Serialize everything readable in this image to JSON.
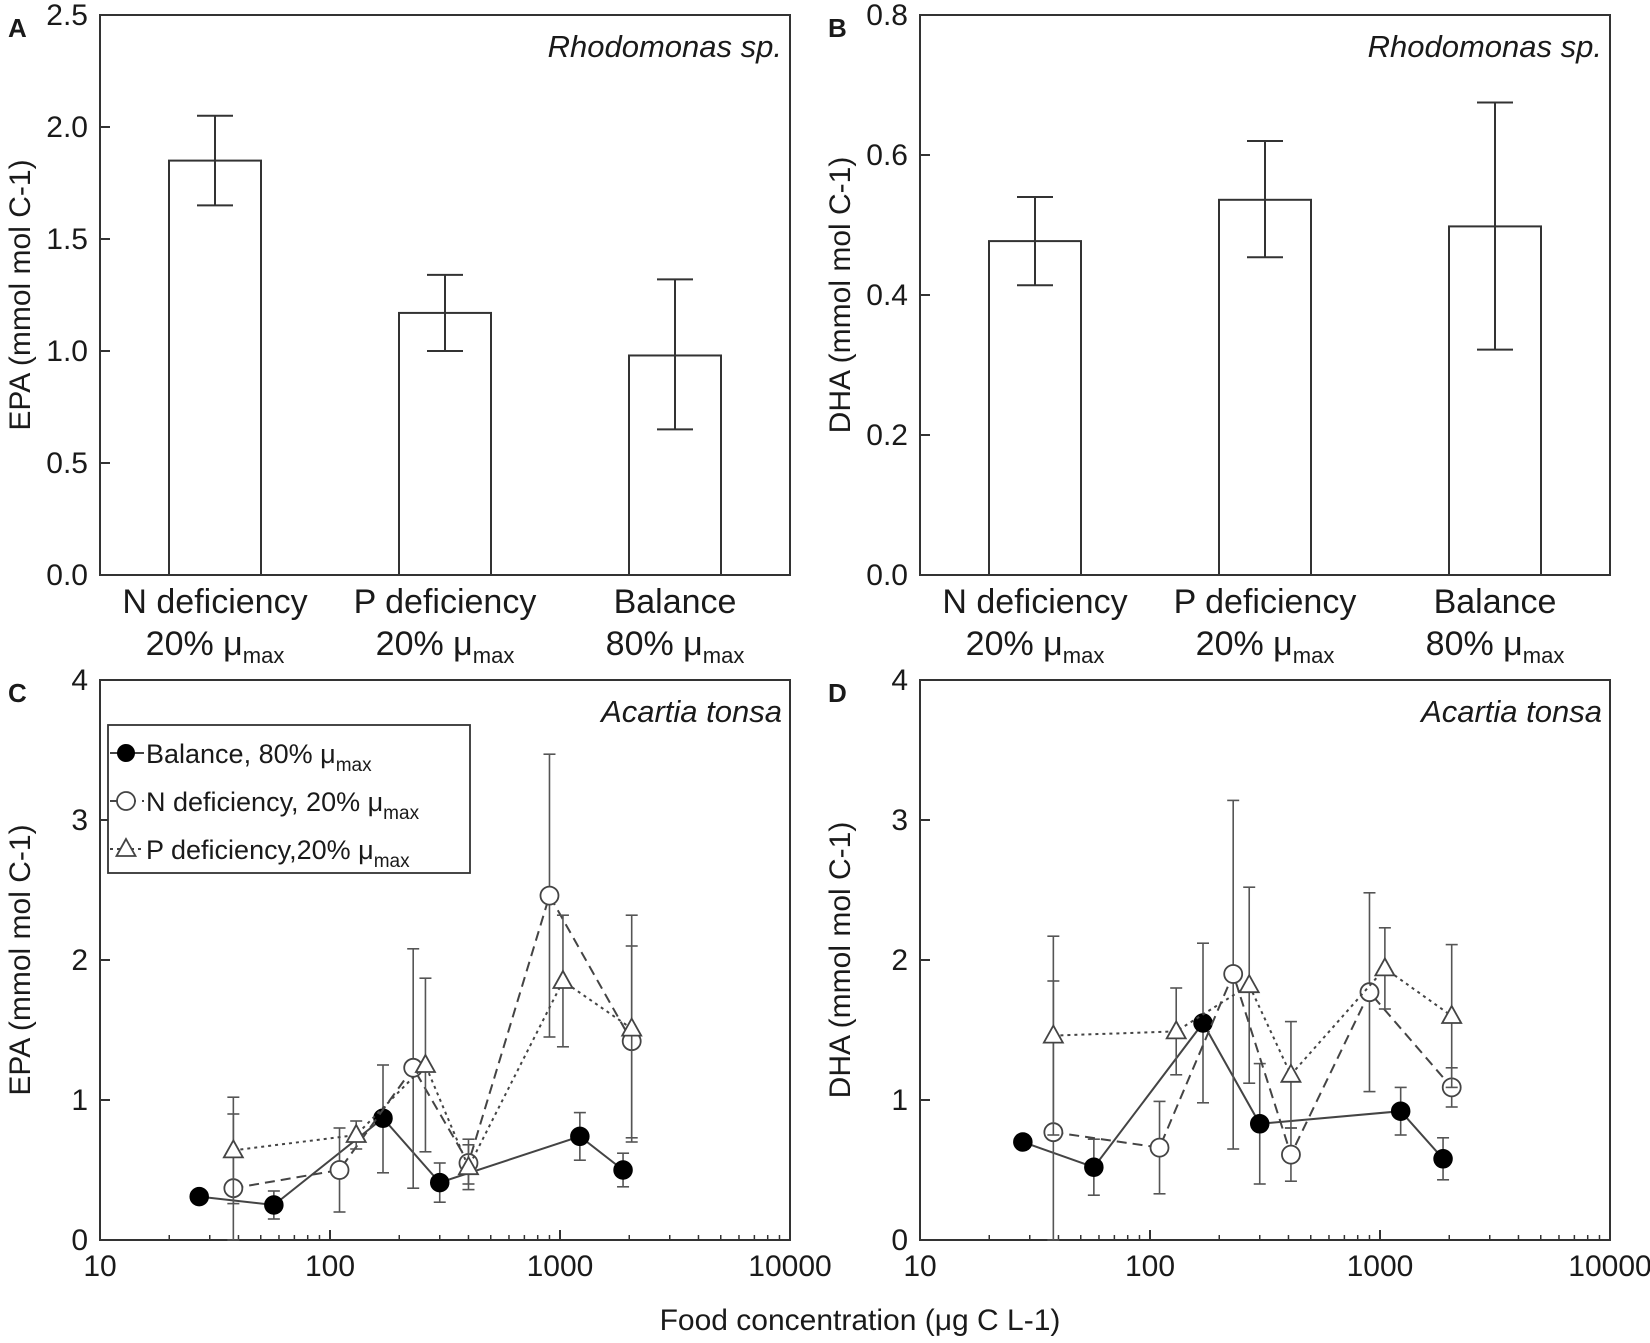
{
  "chart_data": [
    {
      "panel": "A",
      "type": "bar",
      "species": "Rhodomonas sp.",
      "ylabel": "EPA (mmol mol C-1)",
      "ylim": [
        0,
        2.5
      ],
      "yticks": [
        "0.0",
        "0.5",
        "1.0",
        "1.5",
        "2.0",
        "2.5"
      ],
      "categories": [
        {
          "line1": "N deficiency",
          "line2": "20% μ",
          "sub": "max"
        },
        {
          "line1": "P deficiency",
          "line2": "20% μ",
          "sub": "max"
        },
        {
          "line1": "Balance",
          "line2": "80% μ",
          "sub": "max"
        }
      ],
      "values": [
        1.85,
        1.17,
        0.98
      ],
      "errors": [
        [
          1.65,
          2.05
        ],
        [
          1.0,
          1.34
        ],
        [
          0.65,
          1.32
        ]
      ]
    },
    {
      "panel": "B",
      "type": "bar",
      "species": "Rhodomonas sp.",
      "ylabel": "DHA (mmol mol C-1)",
      "ylim": [
        0,
        0.8
      ],
      "yticks": [
        "0.0",
        "0.2",
        "0.4",
        "0.6",
        "0.8"
      ],
      "categories": [
        {
          "line1": "N deficiency",
          "line2": "20% μ",
          "sub": "max"
        },
        {
          "line1": "P deficiency",
          "line2": "20% μ",
          "sub": "max"
        },
        {
          "line1": "Balance",
          "line2": "80% μ",
          "sub": "max"
        }
      ],
      "values": [
        0.477,
        0.536,
        0.498
      ],
      "errors": [
        [
          0.414,
          0.54
        ],
        [
          0.454,
          0.62
        ],
        [
          0.322,
          0.675
        ]
      ]
    },
    {
      "panel": "C",
      "type": "line",
      "species": "Acartia tonsa",
      "ylabel": "EPA (mmol mol C-1)",
      "xscale": "log",
      "xlim": [
        10,
        10000
      ],
      "ylim": [
        0,
        4
      ],
      "xticks": [
        10,
        100,
        1000,
        10000
      ],
      "yticks": [
        0,
        1,
        2,
        3,
        4
      ],
      "legend": [
        {
          "marker": "filled-circle",
          "text": "Balance, 80% μ",
          "sub": "max"
        },
        {
          "marker": "open-circle",
          "text": "N deficiency, 20% μ",
          "sub": "max"
        },
        {
          "marker": "open-triangle",
          "text": "P  deficiency,20% μ",
          "sub": "max"
        }
      ],
      "series": [
        {
          "name": "Balance, 80% μmax",
          "marker": "filled-circle",
          "dash": "",
          "points": [
            {
              "x": 27,
              "y": 0.31,
              "lo": 0.31,
              "hi": 0.31
            },
            {
              "x": 57,
              "y": 0.25,
              "lo": 0.15,
              "hi": 0.35
            },
            {
              "x": 170,
              "y": 0.87,
              "lo": 0.48,
              "hi": 1.25
            },
            {
              "x": 300,
              "y": 0.41,
              "lo": 0.27,
              "hi": 0.55
            },
            {
              "x": 1220,
              "y": 0.74,
              "lo": 0.57,
              "hi": 0.91
            },
            {
              "x": 1880,
              "y": 0.5,
              "lo": 0.38,
              "hi": 0.62
            }
          ]
        },
        {
          "name": "N deficiency, 20% μmax",
          "marker": "open-circle",
          "dash": "10,6",
          "points": [
            {
              "x": 38,
              "y": 0.37,
              "lo": 0.0,
              "hi": 0.9
            },
            {
              "x": 110,
              "y": 0.5,
              "lo": 0.2,
              "hi": 0.8
            },
            {
              "x": 230,
              "y": 1.23,
              "lo": 0.37,
              "hi": 2.08
            },
            {
              "x": 400,
              "y": 0.55,
              "lo": 0.4,
              "hi": 0.72
            },
            {
              "x": 900,
              "y": 2.46,
              "lo": 1.45,
              "hi": 3.47
            },
            {
              "x": 2050,
              "y": 1.42,
              "lo": 0.73,
              "hi": 2.1
            }
          ]
        },
        {
          "name": "P deficiency, 20% μmax",
          "marker": "open-triangle",
          "dash": "3,4",
          "points": [
            {
              "x": 38,
              "y": 0.64,
              "lo": 0.26,
              "hi": 1.02
            },
            {
              "x": 130,
              "y": 0.75,
              "lo": 0.65,
              "hi": 0.85
            },
            {
              "x": 260,
              "y": 1.25,
              "lo": 0.63,
              "hi": 1.87
            },
            {
              "x": 400,
              "y": 0.52,
              "lo": 0.36,
              "hi": 0.68
            },
            {
              "x": 1030,
              "y": 1.85,
              "lo": 1.38,
              "hi": 2.32
            },
            {
              "x": 2050,
              "y": 1.51,
              "lo": 0.7,
              "hi": 2.32
            }
          ]
        }
      ]
    },
    {
      "panel": "D",
      "type": "line",
      "species": "Acartia tonsa",
      "ylabel": "DHA (mmol mol C-1)",
      "xscale": "log",
      "xlim": [
        10,
        10000
      ],
      "ylim": [
        0,
        4
      ],
      "xticks": [
        10,
        100,
        1000,
        10000
      ],
      "yticks": [
        0,
        1,
        2,
        3,
        4
      ],
      "series": [
        {
          "name": "Balance, 80% μmax",
          "marker": "filled-circle",
          "dash": "",
          "points": [
            {
              "x": 28,
              "y": 0.7,
              "lo": 0.65,
              "hi": 0.75
            },
            {
              "x": 57,
              "y": 0.52,
              "lo": 0.32,
              "hi": 0.72
            },
            {
              "x": 170,
              "y": 1.55,
              "lo": 0.98,
              "hi": 2.12
            },
            {
              "x": 300,
              "y": 0.83,
              "lo": 0.4,
              "hi": 1.26
            },
            {
              "x": 1230,
              "y": 0.92,
              "lo": 0.75,
              "hi": 1.09
            },
            {
              "x": 1880,
              "y": 0.58,
              "lo": 0.43,
              "hi": 0.73
            }
          ]
        },
        {
          "name": "N deficiency, 20% μmax",
          "marker": "open-circle",
          "dash": "10,6",
          "points": [
            {
              "x": 38,
              "y": 0.77,
              "lo": 0.0,
              "hi": 1.85
            },
            {
              "x": 110,
              "y": 0.66,
              "lo": 0.33,
              "hi": 0.99
            },
            {
              "x": 230,
              "y": 1.9,
              "lo": 0.65,
              "hi": 3.14
            },
            {
              "x": 410,
              "y": 0.61,
              "lo": 0.42,
              "hi": 0.8
            },
            {
              "x": 900,
              "y": 1.77,
              "lo": 1.06,
              "hi": 2.48
            },
            {
              "x": 2050,
              "y": 1.09,
              "lo": 0.95,
              "hi": 1.23
            }
          ]
        },
        {
          "name": "P deficiency, 20% μmax",
          "marker": "open-triangle",
          "dash": "3,4",
          "points": [
            {
              "x": 38,
              "y": 1.46,
              "lo": 0.75,
              "hi": 2.17
            },
            {
              "x": 130,
              "y": 1.49,
              "lo": 1.18,
              "hi": 1.8
            },
            {
              "x": 270,
              "y": 1.82,
              "lo": 1.12,
              "hi": 2.52
            },
            {
              "x": 410,
              "y": 1.18,
              "lo": 0.8,
              "hi": 1.56
            },
            {
              "x": 1050,
              "y": 1.94,
              "lo": 1.65,
              "hi": 2.23
            },
            {
              "x": 2050,
              "y": 1.6,
              "lo": 1.09,
              "hi": 2.11
            }
          ]
        }
      ]
    }
  ],
  "shared": {
    "xlabel": "Food concentration (μg C L-1)"
  }
}
